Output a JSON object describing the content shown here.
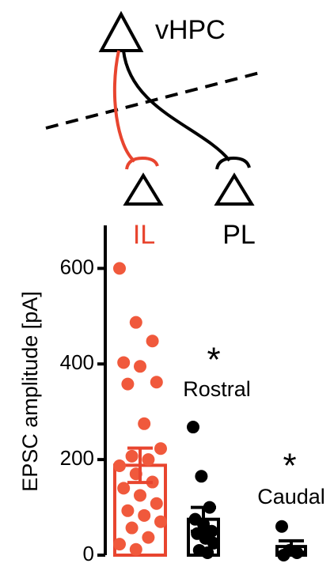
{
  "diagram": {
    "source": "vHPC",
    "targets": [
      "IL",
      "PL"
    ]
  },
  "chart_data": {
    "type": "bar",
    "ylabel": "EPSC amplitude [pA]",
    "categories": [
      null,
      null,
      null
    ],
    "values": [
      188,
      75,
      18
    ],
    "errors": [
      36,
      25,
      12
    ],
    "colors": [
      "#e8452f",
      "#000000",
      "#000000"
    ],
    "points": [
      [
        600,
        487,
        448,
        403,
        395,
        362,
        358,
        275,
        223,
        207,
        200,
        187,
        170,
        153,
        140,
        125,
        108,
        93,
        83,
        70,
        57,
        37,
        23,
        12
      ],
      [
        268,
        165,
        100,
        75,
        65,
        50,
        45,
        35,
        25,
        10,
        5
      ],
      [
        60,
        10,
        5,
        0
      ]
    ],
    "point_colors": [
      "#f0593c",
      "#000000",
      "#000000"
    ],
    "annotations": [
      "*",
      "Rostral",
      "*",
      "Caudal"
    ],
    "ylim": [
      0,
      690
    ],
    "yticks": [
      0,
      200,
      400,
      600
    ]
  }
}
